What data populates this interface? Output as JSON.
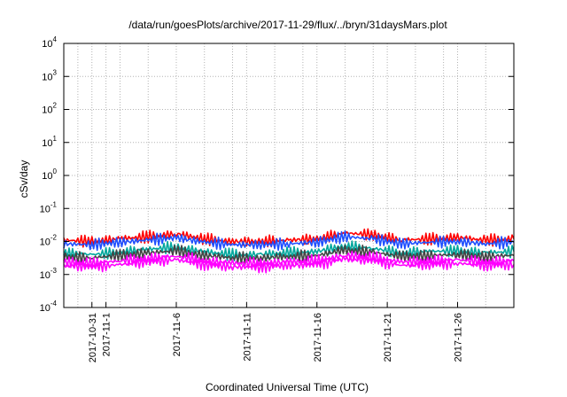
{
  "chart_data": {
    "type": "line",
    "title": "/data/run/goesPlots/archive/2017-11-29/flux/../bryn/31daysMars.plot",
    "xlabel": "Coordinated Universal Time (UTC)",
    "ylabel": "cSv/day",
    "yscale": "log",
    "ylim": [
      0.0001,
      10000
    ],
    "y_ticks": [
      {
        "base": "10",
        "exp": "-4",
        "value": 0.0001
      },
      {
        "base": "10",
        "exp": "-3",
        "value": 0.001
      },
      {
        "base": "10",
        "exp": "-2",
        "value": 0.01
      },
      {
        "base": "10",
        "exp": "-1",
        "value": 0.1
      },
      {
        "base": "10",
        "exp": "0",
        "value": 1
      },
      {
        "base": "10",
        "exp": "1",
        "value": 10
      },
      {
        "base": "10",
        "exp": "2",
        "value": 100
      },
      {
        "base": "10",
        "exp": "3",
        "value": 1000
      },
      {
        "base": "10",
        "exp": "4",
        "value": 10000
      }
    ],
    "xlim": [
      "2017-10-29",
      "2017-11-30"
    ],
    "x_ticks": [
      "2017-10-31",
      "2017-11-1",
      "2017-11-6",
      "2017-11-11",
      "2017-11-16",
      "2017-11-21",
      "2017-11-26"
    ],
    "x_grid_dates": [
      "2017-10-30",
      "2017-10-31",
      "2017-11-1",
      "2017-11-2",
      "2017-11-4",
      "2017-11-6",
      "2017-11-8",
      "2017-11-10",
      "2017-11-11",
      "2017-11-13",
      "2017-11-15",
      "2017-11-16",
      "2017-11-18",
      "2017-11-20",
      "2017-11-21",
      "2017-11-23",
      "2017-11-25",
      "2017-11-26",
      "2017-11-28"
    ],
    "grid": true,
    "legend": "none",
    "series": [
      {
        "color": "#ff0000",
        "x": [
          "2017-10-29",
          "2017-10-31",
          "2017-11-2",
          "2017-11-4",
          "2017-11-6",
          "2017-11-8",
          "2017-11-10",
          "2017-11-12",
          "2017-11-14",
          "2017-11-16",
          "2017-11-18",
          "2017-11-20",
          "2017-11-22",
          "2017-11-24",
          "2017-11-26",
          "2017-11-28",
          "2017-11-30"
        ],
        "y": [
          0.011,
          0.01,
          0.012,
          0.014,
          0.017,
          0.012,
          0.01,
          0.01,
          0.011,
          0.012,
          0.018,
          0.016,
          0.011,
          0.012,
          0.013,
          0.011,
          0.012
        ]
      },
      {
        "color": "#1f4fff",
        "x": [
          "2017-10-29",
          "2017-10-31",
          "2017-11-2",
          "2017-11-4",
          "2017-11-6",
          "2017-11-8",
          "2017-11-10",
          "2017-11-12",
          "2017-11-14",
          "2017-11-16",
          "2017-11-18",
          "2017-11-20",
          "2017-11-22",
          "2017-11-24",
          "2017-11-26",
          "2017-11-28",
          "2017-11-30"
        ],
        "y": [
          0.0085,
          0.008,
          0.0095,
          0.011,
          0.013,
          0.0095,
          0.008,
          0.008,
          0.0085,
          0.0095,
          0.014,
          0.012,
          0.0085,
          0.0095,
          0.01,
          0.0085,
          0.0095
        ]
      },
      {
        "color": "#00a79d",
        "x": [
          "2017-10-29",
          "2017-10-31",
          "2017-11-2",
          "2017-11-4",
          "2017-11-6",
          "2017-11-8",
          "2017-11-10",
          "2017-11-12",
          "2017-11-14",
          "2017-11-16",
          "2017-11-18",
          "2017-11-20",
          "2017-11-22",
          "2017-11-24",
          "2017-11-26",
          "2017-11-28",
          "2017-11-30"
        ],
        "y": [
          0.0045,
          0.004,
          0.0048,
          0.0058,
          0.0068,
          0.0048,
          0.004,
          0.004,
          0.0045,
          0.005,
          0.0072,
          0.0062,
          0.0045,
          0.005,
          0.0052,
          0.0045,
          0.005
        ]
      },
      {
        "color": "#444444",
        "x": [
          "2017-10-29",
          "2017-10-31",
          "2017-11-2",
          "2017-11-4",
          "2017-11-6",
          "2017-11-8",
          "2017-11-10",
          "2017-11-12",
          "2017-11-14",
          "2017-11-16",
          "2017-11-18",
          "2017-11-20",
          "2017-11-22",
          "2017-11-24",
          "2017-11-26",
          "2017-11-28",
          "2017-11-30"
        ],
        "y": [
          0.0035,
          0.0032,
          0.0038,
          0.0045,
          0.0052,
          0.0038,
          0.0032,
          0.0032,
          0.0035,
          0.0038,
          0.0055,
          0.0048,
          0.0035,
          0.0038,
          0.004,
          0.0035,
          0.0038
        ]
      },
      {
        "color": "#ff00ff",
        "x": [
          "2017-10-29",
          "2017-10-31",
          "2017-11-2",
          "2017-11-4",
          "2017-11-6",
          "2017-11-8",
          "2017-11-10",
          "2017-11-12",
          "2017-11-14",
          "2017-11-16",
          "2017-11-18",
          "2017-11-20",
          "2017-11-22",
          "2017-11-24",
          "2017-11-26",
          "2017-11-28",
          "2017-11-30"
        ],
        "y": [
          0.0024,
          0.0022,
          0.0026,
          0.0031,
          0.0036,
          0.0026,
          0.0022,
          0.0022,
          0.0024,
          0.0026,
          0.0038,
          0.0033,
          0.0024,
          0.0026,
          0.0028,
          0.0024,
          0.0026
        ]
      },
      {
        "color": "#ff00ff",
        "x": [
          "2017-10-29",
          "2017-10-31",
          "2017-11-2",
          "2017-11-4",
          "2017-11-6",
          "2017-11-8",
          "2017-11-10",
          "2017-11-12",
          "2017-11-14",
          "2017-11-16",
          "2017-11-18",
          "2017-11-20",
          "2017-11-22",
          "2017-11-24",
          "2017-11-26",
          "2017-11-28",
          "2017-11-30"
        ],
        "y": [
          0.0019,
          0.0017,
          0.002,
          0.0024,
          0.0028,
          0.002,
          0.0017,
          0.0017,
          0.0019,
          0.002,
          0.003,
          0.0026,
          0.0019,
          0.002,
          0.0022,
          0.0019,
          0.002
        ]
      }
    ]
  }
}
